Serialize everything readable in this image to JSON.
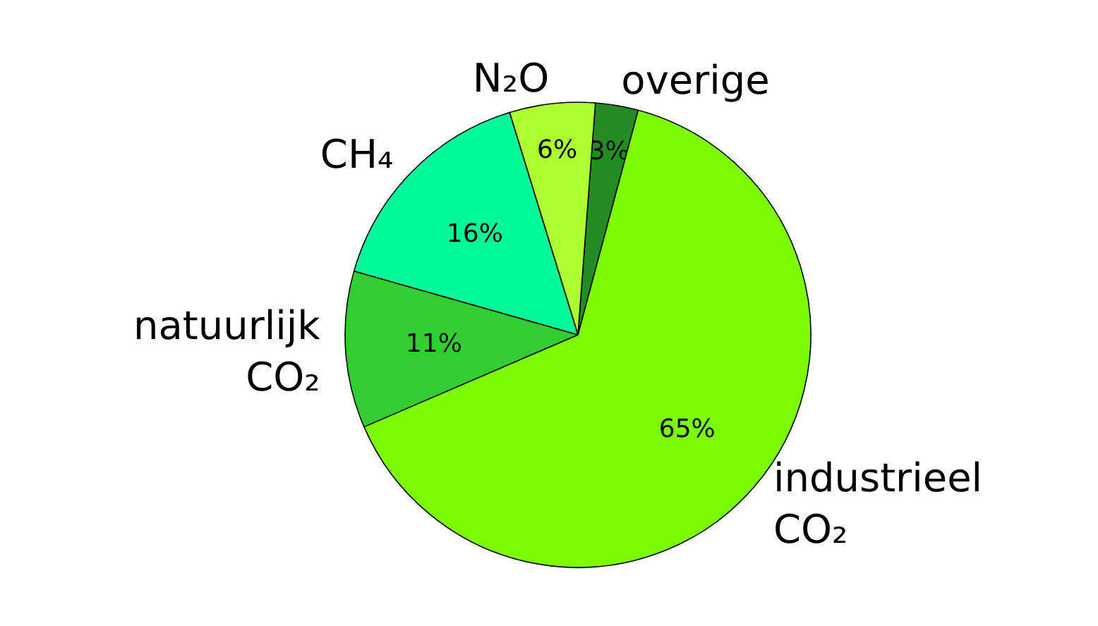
{
  "chart_data": {
    "type": "pie",
    "categories": [
      "overige",
      "N₂O",
      "CH₄",
      "natuurlijk\nCO₂",
      "industrieel\nCO₂"
    ],
    "values": [
      3,
      6,
      16,
      11,
      65
    ],
    "value_labels": [
      "3%",
      "6%",
      "16%",
      "11%",
      "65%"
    ],
    "colors": [
      "#228b22",
      "#adff2f",
      "#00fa9a",
      "#32cd32",
      "#7cfc00"
    ]
  }
}
